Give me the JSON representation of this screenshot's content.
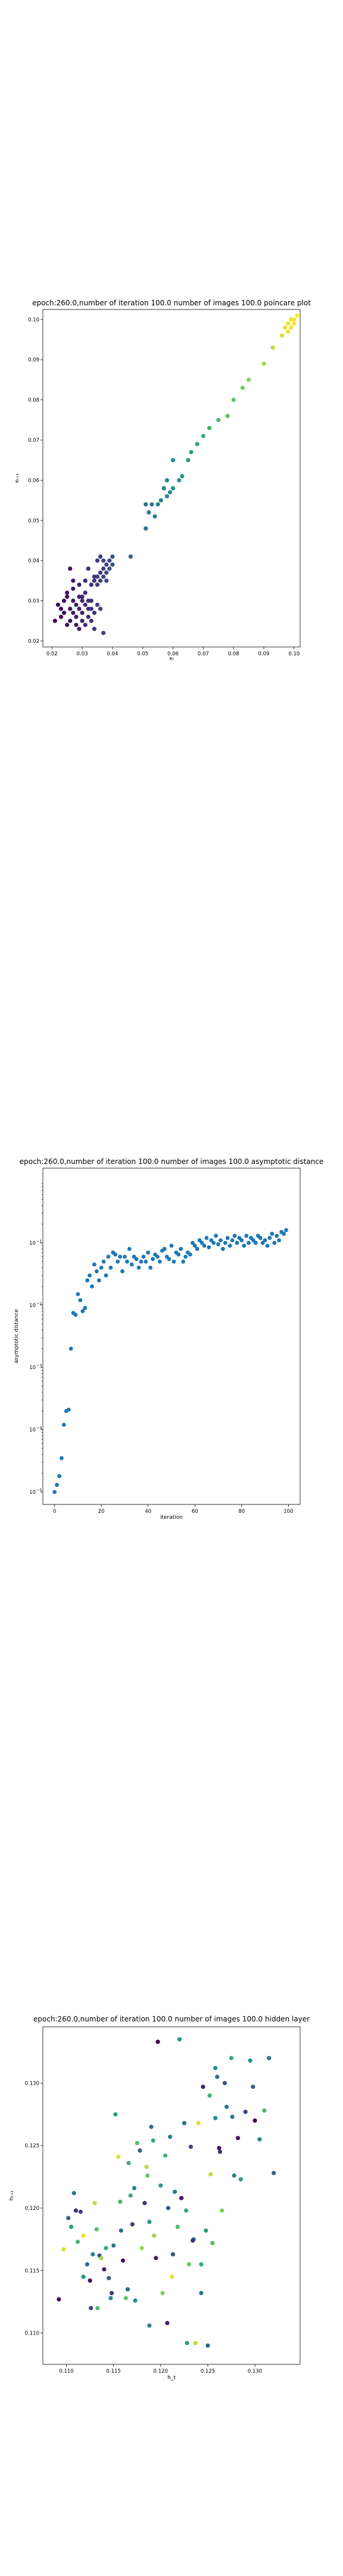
{
  "chart_data": [
    {
      "type": "scatter",
      "title": "epoch:260.0,number of iteration 100.0 number of images 100.0 poincare plot",
      "xlabel": "xₜ",
      "ylabel": "xₜ₊₁",
      "xlim": [
        0.017,
        0.102
      ],
      "ylim": [
        0.0185,
        0.1025
      ],
      "xticks": [
        0.02,
        0.03,
        0.04,
        0.05,
        0.06,
        0.07,
        0.08,
        0.09,
        0.1
      ],
      "xticklabels": [
        "0.02",
        "0.03",
        "0.04",
        "0.05",
        "0.06",
        "0.07",
        "0.08",
        "0.09",
        "0.10"
      ],
      "yticks": [
        0.02,
        0.03,
        0.04,
        0.05,
        0.06,
        0.07,
        0.08,
        0.09,
        0.1
      ],
      "yticklabels": [
        "0.02",
        "0.03",
        "0.04",
        "0.05",
        "0.06",
        "0.07",
        "0.08",
        "0.09",
        "0.10"
      ],
      "colormap": "viridis",
      "grid": false,
      "points": [
        [
          0.021,
          0.025
        ],
        [
          0.022,
          0.029
        ],
        [
          0.023,
          0.026
        ],
        [
          0.023,
          0.028
        ],
        [
          0.024,
          0.027
        ],
        [
          0.024,
          0.03
        ],
        [
          0.025,
          0.024
        ],
        [
          0.025,
          0.032
        ],
        [
          0.026,
          0.025
        ],
        [
          0.026,
          0.028
        ],
        [
          0.026,
          0.038
        ],
        [
          0.027,
          0.027
        ],
        [
          0.027,
          0.03
        ],
        [
          0.027,
          0.033
        ],
        [
          0.028,
          0.026
        ],
        [
          0.028,
          0.029
        ],
        [
          0.028,
          0.024
        ],
        [
          0.029,
          0.031
        ],
        [
          0.029,
          0.028
        ],
        [
          0.029,
          0.023
        ],
        [
          0.03,
          0.027
        ],
        [
          0.03,
          0.03
        ],
        [
          0.03,
          0.025
        ],
        [
          0.031,
          0.029
        ],
        [
          0.031,
          0.032
        ],
        [
          0.031,
          0.024
        ],
        [
          0.032,
          0.028
        ],
        [
          0.032,
          0.026
        ],
        [
          0.032,
          0.038
        ],
        [
          0.033,
          0.03
        ],
        [
          0.033,
          0.025
        ],
        [
          0.033,
          0.034
        ],
        [
          0.034,
          0.027
        ],
        [
          0.034,
          0.023
        ],
        [
          0.035,
          0.029
        ],
        [
          0.036,
          0.028
        ],
        [
          0.037,
          0.022
        ],
        [
          0.025,
          0.031
        ],
        [
          0.027,
          0.035
        ],
        [
          0.029,
          0.034
        ],
        [
          0.03,
          0.031
        ],
        [
          0.031,
          0.035
        ],
        [
          0.032,
          0.03
        ],
        [
          0.033,
          0.028
        ],
        [
          0.033,
          0.034
        ],
        [
          0.034,
          0.035
        ],
        [
          0.034,
          0.036
        ],
        [
          0.035,
          0.034
        ],
        [
          0.035,
          0.036
        ],
        [
          0.035,
          0.04
        ],
        [
          0.036,
          0.035
        ],
        [
          0.036,
          0.037
        ],
        [
          0.036,
          0.041
        ],
        [
          0.037,
          0.036
        ],
        [
          0.037,
          0.038
        ],
        [
          0.037,
          0.04
        ],
        [
          0.038,
          0.037
        ],
        [
          0.038,
          0.039
        ],
        [
          0.038,
          0.035
        ],
        [
          0.039,
          0.038
        ],
        [
          0.039,
          0.04
        ],
        [
          0.04,
          0.039
        ],
        [
          0.04,
          0.041
        ],
        [
          0.046,
          0.041
        ],
        [
          0.051,
          0.048
        ],
        [
          0.051,
          0.054
        ],
        [
          0.052,
          0.052
        ],
        [
          0.053,
          0.054
        ],
        [
          0.054,
          0.051
        ],
        [
          0.055,
          0.054
        ],
        [
          0.056,
          0.055
        ],
        [
          0.057,
          0.058
        ],
        [
          0.058,
          0.056
        ],
        [
          0.058,
          0.06
        ],
        [
          0.059,
          0.057
        ],
        [
          0.06,
          0.065
        ],
        [
          0.06,
          0.058
        ],
        [
          0.062,
          0.06
        ],
        [
          0.063,
          0.061
        ],
        [
          0.065,
          0.065
        ],
        [
          0.066,
          0.067
        ],
        [
          0.068,
          0.069
        ],
        [
          0.07,
          0.071
        ],
        [
          0.072,
          0.073
        ],
        [
          0.075,
          0.075
        ],
        [
          0.078,
          0.076
        ],
        [
          0.08,
          0.08
        ],
        [
          0.083,
          0.083
        ],
        [
          0.085,
          0.085
        ],
        [
          0.09,
          0.089
        ],
        [
          0.093,
          0.093
        ],
        [
          0.096,
          0.096
        ],
        [
          0.097,
          0.098
        ],
        [
          0.098,
          0.099
        ],
        [
          0.098,
          0.097
        ],
        [
          0.099,
          0.1
        ],
        [
          0.099,
          0.098
        ],
        [
          0.1,
          0.1
        ],
        [
          0.1,
          0.099
        ],
        [
          0.101,
          0.101
        ]
      ]
    },
    {
      "type": "scatter",
      "title": "epoch:260.0,number of iteration 100.0  number of images 100.0 asymptotic distance",
      "xlabel": "iteration",
      "ylabel": "asymptotic distance",
      "yscale": "log",
      "xlim": [
        -5,
        105
      ],
      "ylim_exponent": [
        -5.2,
        0.2
      ],
      "xticks": [
        0,
        20,
        40,
        60,
        80,
        100
      ],
      "xticklabels": [
        "0",
        "20",
        "40",
        "60",
        "80",
        "100"
      ],
      "yticks_exponent": [
        -5,
        -4,
        -3,
        -2,
        -1
      ],
      "ytick_base": "10",
      "color": "#1f77b4",
      "grid": false,
      "x": [
        0,
        1,
        2,
        3,
        4,
        5,
        6,
        7,
        8,
        9,
        10,
        11,
        12,
        13,
        14,
        15,
        16,
        17,
        18,
        19,
        20,
        21,
        22,
        23,
        24,
        25,
        26,
        27,
        28,
        29,
        30,
        31,
        32,
        33,
        34,
        35,
        36,
        37,
        38,
        39,
        40,
        41,
        42,
        43,
        44,
        45,
        46,
        47,
        48,
        49,
        50,
        51,
        52,
        53,
        54,
        55,
        56,
        57,
        58,
        59,
        60,
        61,
        62,
        63,
        64,
        65,
        66,
        67,
        68,
        69,
        70,
        71,
        72,
        73,
        74,
        75,
        76,
        77,
        78,
        79,
        80,
        81,
        82,
        83,
        84,
        85,
        86,
        87,
        88,
        89,
        90,
        91,
        92,
        93,
        94,
        95,
        96,
        97,
        98,
        99
      ],
      "y": [
        1e-05,
        1.3e-05,
        1.8e-05,
        3.5e-05,
        0.00012,
        0.0002,
        0.00021,
        0.002,
        0.0075,
        0.007,
        0.015,
        0.012,
        0.008,
        0.009,
        0.025,
        0.03,
        0.02,
        0.045,
        0.035,
        0.025,
        0.04,
        0.05,
        0.03,
        0.06,
        0.04,
        0.07,
        0.065,
        0.05,
        0.06,
        0.035,
        0.06,
        0.05,
        0.08,
        0.045,
        0.06,
        0.055,
        0.04,
        0.05,
        0.06,
        0.05,
        0.07,
        0.04,
        0.055,
        0.065,
        0.06,
        0.05,
        0.075,
        0.08,
        0.06,
        0.055,
        0.09,
        0.05,
        0.07,
        0.065,
        0.08,
        0.05,
        0.06,
        0.07,
        0.065,
        0.1,
        0.09,
        0.08,
        0.11,
        0.1,
        0.09,
        0.12,
        0.085,
        0.11,
        0.1,
        0.13,
        0.095,
        0.11,
        0.08,
        0.1,
        0.12,
        0.09,
        0.11,
        0.13,
        0.1,
        0.12,
        0.11,
        0.09,
        0.13,
        0.1,
        0.12,
        0.11,
        0.1,
        0.13,
        0.12,
        0.1,
        0.11,
        0.09,
        0.12,
        0.14,
        0.1,
        0.13,
        0.11,
        0.15,
        0.14,
        0.16
      ]
    },
    {
      "type": "scatter",
      "title": "epoch:260.0,number of iteration 100.0  number of images 100.0 hidden layer",
      "xlabel": "h_t",
      "ylabel": "hₜ₊₁",
      "xlim": [
        0.1075,
        0.1348
      ],
      "ylim": [
        0.1075,
        0.1345
      ],
      "xticks": [
        0.11,
        0.115,
        0.12,
        0.125,
        0.13
      ],
      "xticklabels": [
        "0.110",
        "0.115",
        "0.120",
        "0.125",
        "0.130"
      ],
      "yticks": [
        0.11,
        0.115,
        0.12,
        0.125,
        0.13
      ],
      "yticklabels": [
        "0.110",
        "0.115",
        "0.120",
        "0.125",
        "0.130"
      ],
      "colormap": "viridis",
      "grid": false,
      "points": [
        [
          0.1092,
          0.1127,
          0.0
        ],
        [
          0.1097,
          0.1167,
          0.95
        ],
        [
          0.1102,
          0.1192,
          0.3
        ],
        [
          0.1105,
          0.1185,
          0.55
        ],
        [
          0.1108,
          0.1212,
          0.4
        ],
        [
          0.111,
          0.1198,
          0.15
        ],
        [
          0.1112,
          0.1173,
          0.65
        ],
        [
          0.1115,
          0.1197,
          0.2
        ],
        [
          0.1118,
          0.1145,
          0.5
        ],
        [
          0.1122,
          0.1155,
          0.35
        ],
        [
          0.1125,
          0.1142,
          0.05
        ],
        [
          0.1128,
          0.1163,
          0.45
        ],
        [
          0.113,
          0.1204,
          0.9
        ],
        [
          0.1132,
          0.1183,
          0.7
        ],
        [
          0.1135,
          0.1162,
          0.25
        ],
        [
          0.1137,
          0.116,
          0.85
        ],
        [
          0.114,
          0.1151,
          0.1
        ],
        [
          0.1142,
          0.1168,
          0.6
        ],
        [
          0.1145,
          0.1144,
          0.3
        ],
        [
          0.1147,
          0.1128,
          0.5
        ],
        [
          0.115,
          0.117,
          0.4
        ],
        [
          0.1152,
          0.1275,
          0.55
        ],
        [
          0.1155,
          0.1241,
          0.95
        ],
        [
          0.1157,
          0.1205,
          0.65
        ],
        [
          0.116,
          0.1158,
          0.05
        ],
        [
          0.1163,
          0.1128,
          0.75
        ],
        [
          0.1165,
          0.1135,
          0.35
        ],
        [
          0.1168,
          0.121,
          0.6
        ],
        [
          0.117,
          0.1187,
          0.2
        ],
        [
          0.1172,
          0.1216,
          0.45
        ],
        [
          0.1175,
          0.1252,
          0.7
        ],
        [
          0.1178,
          0.1246,
          0.3
        ],
        [
          0.118,
          0.1168,
          0.85
        ],
        [
          0.1183,
          0.1204,
          0.15
        ],
        [
          0.1185,
          0.1233,
          0.9
        ],
        [
          0.1188,
          0.1189,
          0.5
        ],
        [
          0.119,
          0.1265,
          0.35
        ],
        [
          0.1192,
          0.1254,
          0.6
        ],
        [
          0.1195,
          0.116,
          0.1
        ],
        [
          0.1197,
          0.1333,
          0.0
        ],
        [
          0.12,
          0.1218,
          0.55
        ],
        [
          0.1202,
          0.1132,
          0.8
        ],
        [
          0.1205,
          0.1242,
          0.65
        ],
        [
          0.1208,
          0.12,
          0.25
        ],
        [
          0.121,
          0.1257,
          0.45
        ],
        [
          0.1212,
          0.1145,
          0.95
        ],
        [
          0.1215,
          0.1213,
          0.4
        ],
        [
          0.1218,
          0.1185,
          0.7
        ],
        [
          0.122,
          0.1335,
          0.5
        ],
        [
          0.1222,
          0.1208,
          0.05
        ],
        [
          0.1225,
          0.1268,
          0.35
        ],
        [
          0.1227,
          0.1198,
          0.6
        ],
        [
          0.123,
          0.1155,
          0.75
        ],
        [
          0.1232,
          0.1249,
          0.2
        ],
        [
          0.1235,
          0.1175,
          0.45
        ],
        [
          0.1237,
          0.1092,
          0.9
        ],
        [
          0.124,
          0.1268,
          0.95
        ],
        [
          0.1243,
          0.1132,
          0.4
        ],
        [
          0.1245,
          0.1297,
          0.1
        ],
        [
          0.1248,
          0.1182,
          0.55
        ],
        [
          0.125,
          0.109,
          0.3
        ],
        [
          0.1252,
          0.129,
          0.65
        ],
        [
          0.1255,
          0.1172,
          0.7
        ],
        [
          0.1258,
          0.1312,
          0.5
        ],
        [
          0.126,
          0.1305,
          0.35
        ],
        [
          0.1263,
          0.1245,
          0.15
        ],
        [
          0.1265,
          0.1198,
          0.8
        ],
        [
          0.1268,
          0.13,
          0.25
        ],
        [
          0.127,
          0.1281,
          0.4
        ],
        [
          0.1275,
          0.132,
          0.6
        ],
        [
          0.1278,
          0.1226,
          0.45
        ],
        [
          0.1282,
          0.1256,
          0.05
        ],
        [
          0.1285,
          0.1223,
          0.55
        ],
        [
          0.129,
          0.1277,
          0.2
        ],
        [
          0.1295,
          0.1318,
          0.5
        ],
        [
          0.13,
          0.127,
          0.0
        ],
        [
          0.1305,
          0.1255,
          0.45
        ],
        [
          0.131,
          0.1278,
          0.65
        ],
        [
          0.1315,
          0.132,
          0.4
        ],
        [
          0.132,
          0.1228,
          0.3
        ],
        [
          0.1148,
          0.1132,
          0.15
        ],
        [
          0.1173,
          0.1126,
          0.5
        ],
        [
          0.1193,
          0.1178,
          0.85
        ],
        [
          0.1213,
          0.1163,
          0.25
        ],
        [
          0.1243,
          0.1155,
          0.6
        ],
        [
          0.1262,
          0.1248,
          0.05
        ],
        [
          0.1133,
          0.112,
          0.7
        ],
        [
          0.1158,
          0.1182,
          0.35
        ],
        [
          0.1188,
          0.1106,
          0.45
        ],
        [
          0.1207,
          0.1108,
          0.1
        ],
        [
          0.1228,
          0.1092,
          0.55
        ],
        [
          0.1253,
          0.1227,
          0.9
        ],
        [
          0.1276,
          0.1273,
          0.4
        ],
        [
          0.1298,
          0.1297,
          0.3
        ],
        [
          0.1118,
          0.1178,
          0.95
        ],
        [
          0.1126,
          0.112,
          0.2
        ],
        [
          0.1166,
          0.1236,
          0.6
        ],
        [
          0.1186,
          0.1226,
          0.75
        ],
        [
          0.1234,
          0.1174,
          0.15
        ],
        [
          0.1258,
          0.1272,
          0.5
        ]
      ]
    }
  ]
}
